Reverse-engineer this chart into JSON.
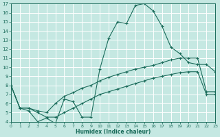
{
  "xlabel": "Humidex (Indice chaleur)",
  "bg_color": "#c5e8e2",
  "line_color": "#1a6b5a",
  "grid_color": "#b0d8d0",
  "xlim": [
    0,
    23
  ],
  "ylim": [
    4,
    17
  ],
  "yticks": [
    4,
    5,
    6,
    7,
    8,
    9,
    10,
    11,
    12,
    13,
    14,
    15,
    16,
    17
  ],
  "xticks": [
    0,
    1,
    2,
    3,
    4,
    5,
    6,
    7,
    8,
    9,
    10,
    11,
    12,
    13,
    14,
    15,
    16,
    17,
    18,
    19,
    20,
    21,
    22,
    23
  ],
  "line1_x": [
    0,
    1,
    2,
    3,
    4,
    5,
    6,
    7,
    8,
    9,
    10,
    11,
    12,
    13,
    14,
    15,
    16,
    17,
    18,
    19,
    20,
    21,
    22,
    23
  ],
  "line1_y": [
    8.0,
    5.5,
    5.2,
    4.0,
    4.4,
    3.8,
    6.5,
    6.2,
    4.5,
    4.5,
    9.8,
    13.2,
    15.0,
    14.8,
    16.8,
    17.0,
    16.2,
    14.5,
    12.2,
    11.5,
    10.5,
    10.3,
    10.3,
    9.5
  ],
  "line2_x": [
    0,
    1,
    2,
    3,
    4,
    5,
    6,
    7,
    8,
    9,
    10,
    11,
    12,
    13,
    14,
    15,
    16,
    17,
    18,
    19,
    20,
    21,
    22,
    23
  ],
  "line2_y": [
    8.0,
    5.5,
    5.5,
    5.2,
    5.0,
    6.0,
    6.8,
    7.2,
    7.7,
    8.0,
    8.5,
    8.9,
    9.2,
    9.5,
    9.8,
    10.0,
    10.2,
    10.5,
    10.8,
    11.0,
    11.0,
    11.0,
    7.3,
    7.3
  ],
  "line3_x": [
    0,
    1,
    2,
    3,
    4,
    5,
    6,
    7,
    8,
    9,
    10,
    11,
    12,
    13,
    14,
    15,
    16,
    17,
    18,
    19,
    20,
    21,
    22,
    23
  ],
  "line3_y": [
    8.0,
    5.5,
    5.5,
    5.0,
    4.5,
    4.5,
    5.0,
    5.5,
    6.0,
    6.5,
    7.0,
    7.3,
    7.6,
    7.9,
    8.2,
    8.5,
    8.8,
    9.0,
    9.2,
    9.4,
    9.5,
    9.5,
    7.0,
    7.0
  ]
}
